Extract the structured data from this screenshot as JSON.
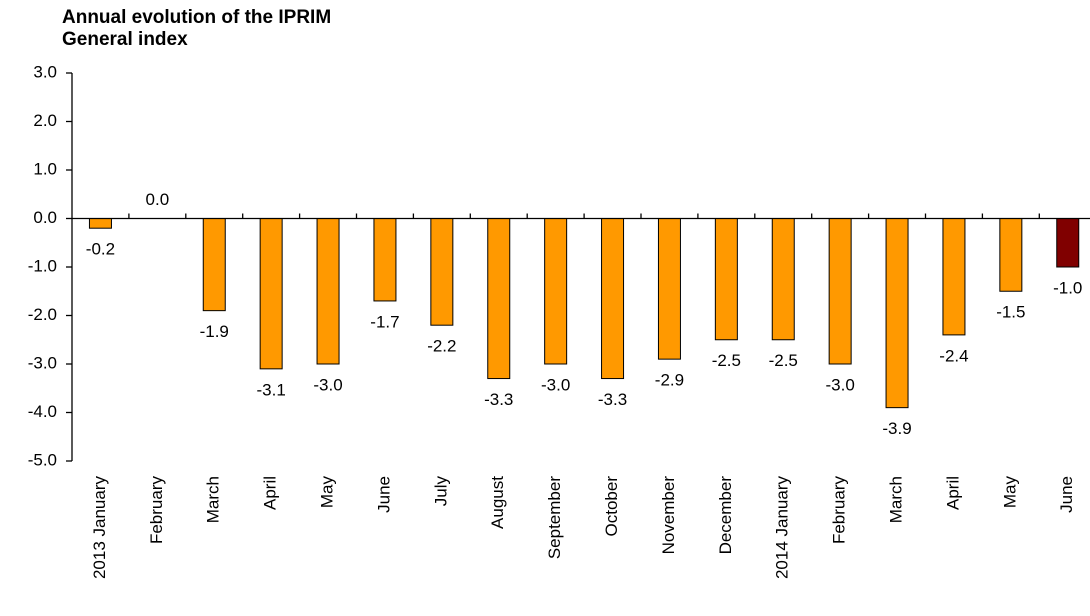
{
  "chart_data": {
    "type": "bar",
    "title": [
      "Annual evolution of the IPRIM",
      "General index"
    ],
    "categories": [
      "2013 January",
      "February",
      "March",
      "April",
      "May",
      "June",
      "July",
      "August",
      "September",
      "October",
      "November",
      "December",
      "2014 January",
      "February",
      "March",
      "April",
      "May",
      "June"
    ],
    "values": [
      -0.2,
      0.0,
      -1.9,
      -3.1,
      -3.0,
      -1.7,
      -2.2,
      -3.3,
      -3.0,
      -3.3,
      -2.9,
      -2.5,
      -2.5,
      -3.0,
      -3.9,
      -2.4,
      -1.5,
      -1.0
    ],
    "value_labels": [
      "-0.2",
      "0.0",
      "-1.9",
      "-3.1",
      "-3.0",
      "-1.7",
      "-2.2",
      "-3.3",
      "-3.0",
      "-3.3",
      "-2.9",
      "-2.5",
      "-2.5",
      "-3.0",
      "-3.9",
      "-2.4",
      "-1.5",
      "-1.0"
    ],
    "colors": [
      "#ff9900",
      "#ff9900",
      "#ff9900",
      "#ff9900",
      "#ff9900",
      "#ff9900",
      "#ff9900",
      "#ff9900",
      "#ff9900",
      "#ff9900",
      "#ff9900",
      "#ff9900",
      "#ff9900",
      "#ff9900",
      "#ff9900",
      "#ff9900",
      "#ff9900",
      "#800000"
    ],
    "ylim": [
      -5,
      3
    ],
    "yticks": [
      {
        "value": 3,
        "label": "3.0"
      },
      {
        "value": 2,
        "label": "2.0"
      },
      {
        "value": 1,
        "label": "1.0"
      },
      {
        "value": 0,
        "label": "0.0"
      },
      {
        "value": -1,
        "label": "-1.0"
      },
      {
        "value": -2,
        "label": "-2.0"
      },
      {
        "value": -3,
        "label": "-3.0"
      },
      {
        "value": -4,
        "label": "-4.0"
      },
      {
        "value": -5,
        "label": "-5.0"
      }
    ]
  }
}
